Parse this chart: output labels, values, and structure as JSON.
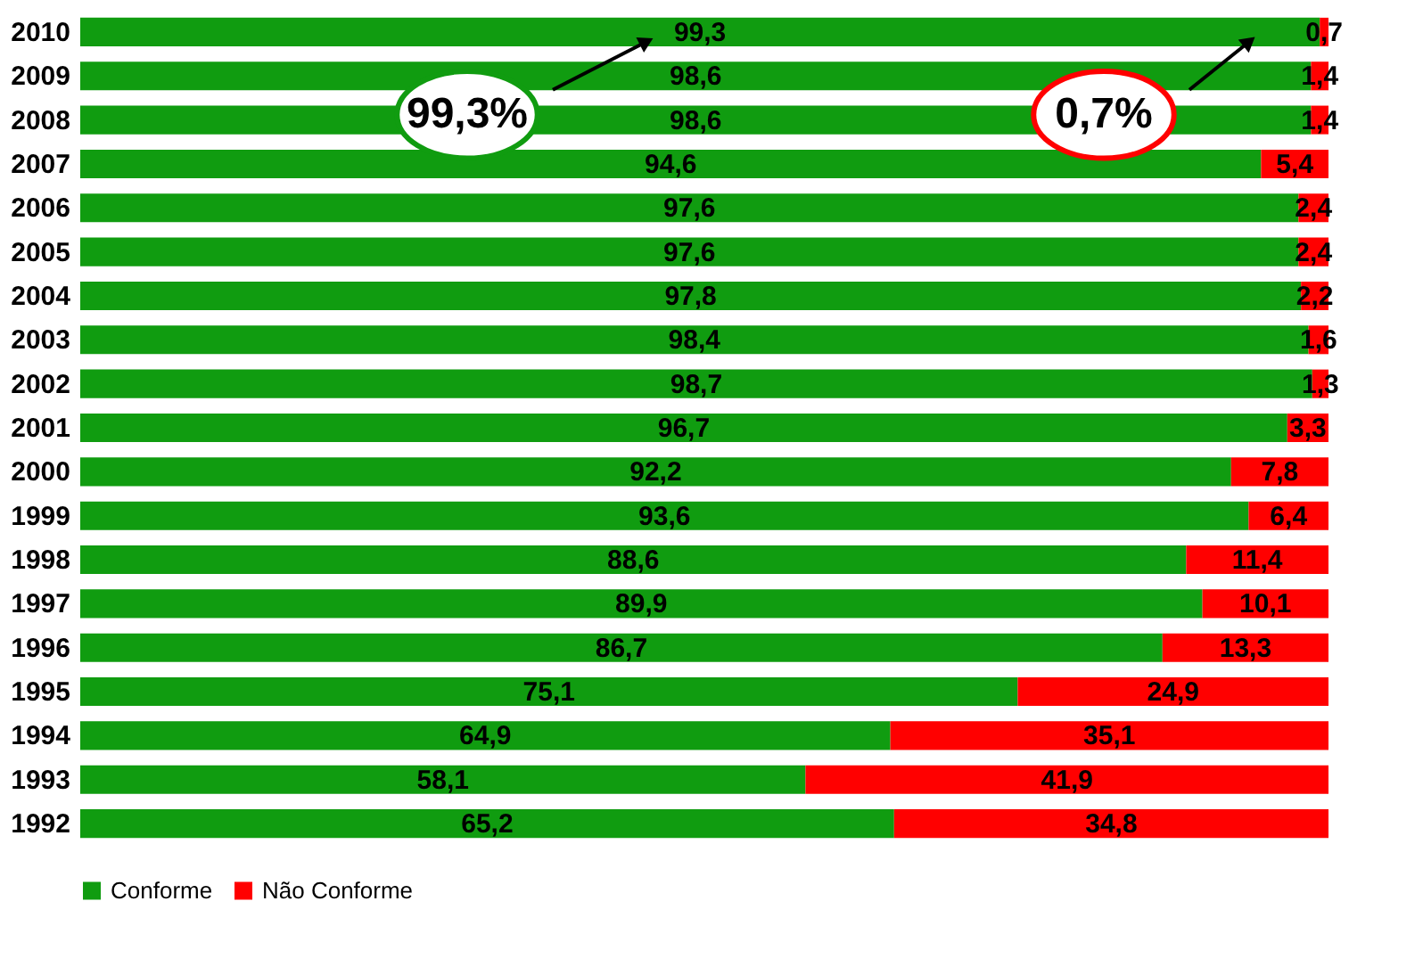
{
  "chart_data": {
    "type": "bar",
    "orientation": "horizontal",
    "stacked": true,
    "legend": "bottom",
    "categories": [
      "2010",
      "2009",
      "2008",
      "2007",
      "2006",
      "2005",
      "2004",
      "2003",
      "2002",
      "2001",
      "2000",
      "1999",
      "1998",
      "1997",
      "1996",
      "1995",
      "1994",
      "1993",
      "1992"
    ],
    "series": [
      {
        "name": "Conforme",
        "color": "#109c10",
        "values": [
          99.3,
          98.6,
          98.6,
          94.6,
          97.6,
          97.6,
          97.8,
          98.4,
          98.7,
          96.7,
          92.2,
          93.6,
          88.6,
          89.9,
          86.7,
          75.1,
          64.9,
          58.1,
          65.2
        ],
        "value_labels": [
          "99,3",
          "98,6",
          "98,6",
          "94,6",
          "97,6",
          "97,6",
          "97,8",
          "98,4",
          "98,7",
          "96,7",
          "92,2",
          "93,6",
          "88,6",
          "89,9",
          "86,7",
          "75,1",
          "64,9",
          "58,1",
          "65,2"
        ]
      },
      {
        "name": "Não Conforme",
        "color": "#ff0000",
        "values": [
          0.7,
          1.4,
          1.4,
          5.4,
          2.4,
          2.4,
          2.2,
          1.6,
          1.3,
          3.3,
          7.8,
          6.4,
          11.4,
          10.1,
          13.3,
          24.9,
          35.1,
          41.9,
          34.8
        ],
        "value_labels": [
          "0,7",
          "1,4",
          "1,4",
          "5,4",
          "2,4",
          "2,4",
          "2,2",
          "1,6",
          "1,3",
          "3,3",
          "7,8",
          "6,4",
          "11,4",
          "10,1",
          "13,3",
          "24,9",
          "35,1",
          "41,9",
          "34,8"
        ]
      }
    ],
    "annotations": [
      "99,3%",
      "0,7%"
    ]
  }
}
